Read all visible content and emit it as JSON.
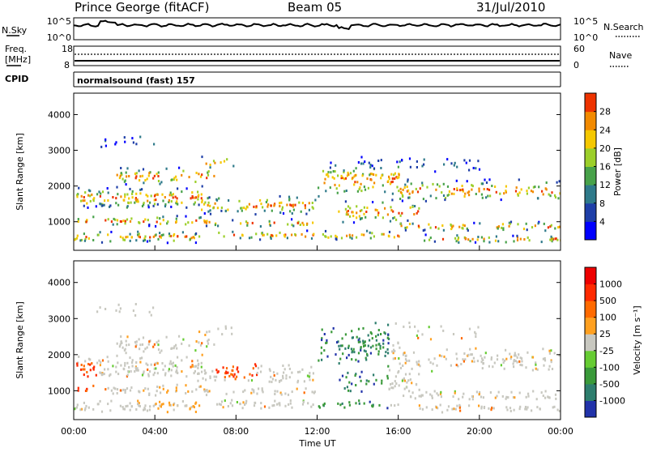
{
  "header": {
    "station": "Prince George (fitACF)",
    "beam": "Beam 05",
    "date": "31/Jul/2010"
  },
  "top_panels": {
    "nsky_label": "N.Sky",
    "nsky_ticks": [
      "10^5",
      "10^0"
    ],
    "nsearch_label": "N.Search",
    "nsearch_ticks": [
      "10^5",
      "10^0"
    ],
    "freq_label_1": "Freq.",
    "freq_label_2": "[MHz]",
    "freq_ticks": [
      "18",
      "8"
    ],
    "nave_label": "Nave",
    "nave_ticks": [
      "60",
      "0"
    ],
    "cpid_label": "CPID",
    "program": "normalsound (fast) 157"
  },
  "chart_data": [
    {
      "type": "heatmap",
      "ylabel": "Slant Range [km]",
      "ylim": [
        200,
        4600
      ],
      "y_ticks": [
        "1000",
        "2000",
        "3000",
        "4000"
      ],
      "xlim": [
        "00:00",
        "24:00"
      ],
      "colorbar_label": "Power [dB]",
      "colorbar_ticks": [
        "28",
        "24",
        "20",
        "16",
        "12",
        "8",
        "4"
      ],
      "colorbar_colors": [
        "#0000ff",
        "#1f3fa8",
        "#2f7a8a",
        "#48a24a",
        "#9ccf2a",
        "#f5c800",
        "#f28a00",
        "#ee3300"
      ],
      "grid": false
    },
    {
      "type": "heatmap",
      "xlabel": "Time UT",
      "x_ticks": [
        "00:00",
        "04:00",
        "08:00",
        "12:00",
        "16:00",
        "20:00",
        "00:00"
      ],
      "ylabel": "Slant Range [km]",
      "ylim": [
        200,
        4600
      ],
      "y_ticks": [
        "1000",
        "2000",
        "3000",
        "4000"
      ],
      "xlim": [
        "00:00",
        "24:00"
      ],
      "colorbar_label": "Velocity [m s⁻¹]",
      "colorbar_ticks": [
        "1000",
        "500",
        "100",
        "25",
        "-25",
        "-100",
        "-500",
        "-1000"
      ],
      "colorbar_colors": [
        "#2233aa",
        "#2e7e6e",
        "#3a9a3a",
        "#66cc33",
        "#c8c8c0",
        "#ffa020",
        "#ff6a00",
        "#ff2a00",
        "#ee0000"
      ],
      "grid": false
    }
  ]
}
